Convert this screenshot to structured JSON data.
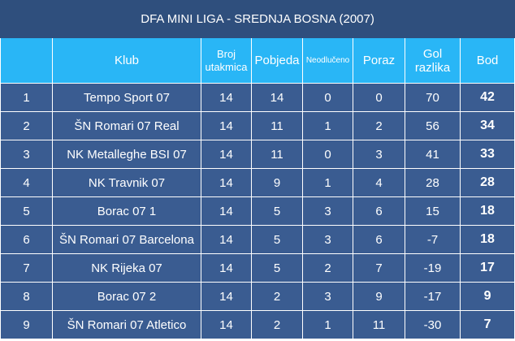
{
  "title": "DFA MINI LIGA - SREDNJA BOSNA (2007)",
  "columns": {
    "rank": "",
    "club": "Klub",
    "played": "Broj utakmica",
    "won": "Pobjeda",
    "drawn": "Neodlučeno",
    "lost": "Poraz",
    "goal_diff": "Gol razlika",
    "points": "Bod"
  },
  "rows": [
    {
      "rank": "1",
      "club": "Tempo Sport 07",
      "played": "14",
      "won": "14",
      "drawn": "0",
      "lost": "0",
      "goal_diff": "70",
      "points": "42"
    },
    {
      "rank": "2",
      "club": "ŠN Romari 07 Real",
      "played": "14",
      "won": "11",
      "drawn": "1",
      "lost": "2",
      "goal_diff": "56",
      "points": "34"
    },
    {
      "rank": "3",
      "club": "NK Metalleghe BSI 07",
      "played": "14",
      "won": "11",
      "drawn": "0",
      "lost": "3",
      "goal_diff": "41",
      "points": "33"
    },
    {
      "rank": "4",
      "club": "NK Travnik 07",
      "played": "14",
      "won": "9",
      "drawn": "1",
      "lost": "4",
      "goal_diff": "28",
      "points": "28"
    },
    {
      "rank": "5",
      "club": "Borac 07 1",
      "played": "14",
      "won": "5",
      "drawn": "3",
      "lost": "6",
      "goal_diff": "15",
      "points": "18"
    },
    {
      "rank": "6",
      "club": "ŠN Romari 07 Barcelona",
      "played": "14",
      "won": "5",
      "drawn": "3",
      "lost": "6",
      "goal_diff": "-7",
      "points": "18"
    },
    {
      "rank": "7",
      "club": "NK Rijeka 07",
      "played": "14",
      "won": "5",
      "drawn": "2",
      "lost": "7",
      "goal_diff": "-19",
      "points": "17"
    },
    {
      "rank": "8",
      "club": "Borac 07 2",
      "played": "14",
      "won": "2",
      "drawn": "3",
      "lost": "9",
      "goal_diff": "-17",
      "points": "9"
    },
    {
      "rank": "9",
      "club": "ŠN Romari 07 Atletico",
      "played": "14",
      "won": "2",
      "drawn": "1",
      "lost": "11",
      "goal_diff": "-30",
      "points": "7"
    }
  ],
  "colors": {
    "title_bg": "#2f4f7d",
    "header_bg": "#29b6f6",
    "row_bg": "#3a5c91",
    "text": "#ffffff"
  }
}
